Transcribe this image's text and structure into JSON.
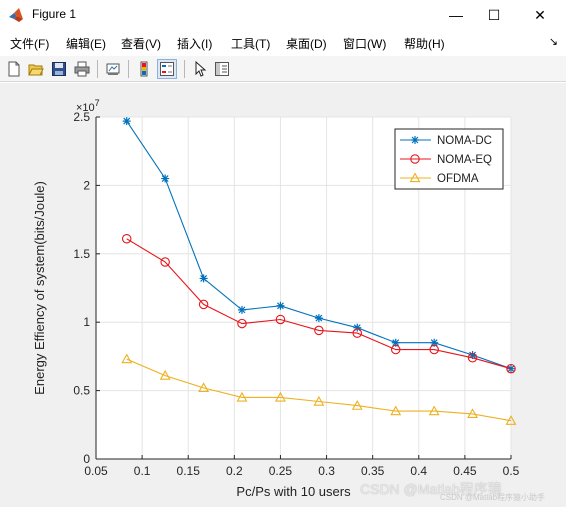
{
  "window": {
    "title": "Figure 1",
    "minimize_glyph": "—",
    "maximize_glyph": "☐",
    "close_glyph": "✕",
    "icon": "matlab-icon"
  },
  "menu": {
    "items": [
      "文件(F)",
      "编辑(E)",
      "查看(V)",
      "插入(I)",
      "工具(T)",
      "桌面(D)",
      "窗口(W)",
      "帮助(H)"
    ],
    "overflow_glyph": "↘"
  },
  "toolbar": {
    "buttons": [
      "new-figure-icon",
      "open-file-icon",
      "save-icon",
      "print-icon",
      "link-plot-icon",
      "colorbar-icon",
      "legend-icon",
      "edit-plot-arrow-icon",
      "property-editor-icon"
    ]
  },
  "chart_data": {
    "type": "line",
    "title": "",
    "xlabel": "Pc/Ps with 10 users",
    "ylabel": "Energy Effiency of system(bits/Joule)",
    "y_exponent_label": "×10",
    "y_exponent_power": "7",
    "xlim": [
      0.05,
      0.5
    ],
    "ylim": [
      0,
      2.5
    ],
    "x_ticks": [
      "0.05",
      "0.1",
      "0.15",
      "0.2",
      "0.25",
      "0.3",
      "0.35",
      "0.4",
      "0.45",
      "0.5"
    ],
    "y_ticks": [
      "0",
      "0.5",
      "1",
      "1.5",
      "2",
      "2.5"
    ],
    "grid": true,
    "legend_position": "top-right",
    "x": [
      0.0833,
      0.125,
      0.1667,
      0.2083,
      0.25,
      0.2917,
      0.3333,
      0.375,
      0.4167,
      0.4583,
      0.5
    ],
    "series": [
      {
        "name": "NOMA-DC",
        "color": "#0072bd",
        "marker": "star",
        "values": [
          2.47,
          2.05,
          1.32,
          1.09,
          1.12,
          1.03,
          0.96,
          0.85,
          0.85,
          0.76,
          0.66
        ]
      },
      {
        "name": "NOMA-EQ",
        "color": "#e8151b",
        "marker": "circle",
        "values": [
          1.61,
          1.44,
          1.13,
          0.99,
          1.02,
          0.94,
          0.92,
          0.8,
          0.8,
          0.74,
          0.66
        ]
      },
      {
        "name": "OFDMA",
        "color": "#edb120",
        "marker": "triangle",
        "values": [
          0.73,
          0.61,
          0.52,
          0.45,
          0.45,
          0.42,
          0.39,
          0.35,
          0.35,
          0.33,
          0.28
        ]
      }
    ]
  },
  "watermark": {
    "text": "CSDN @Matlab程序猿",
    "small_text": "CSDN @Matlab程序猿小助手"
  }
}
